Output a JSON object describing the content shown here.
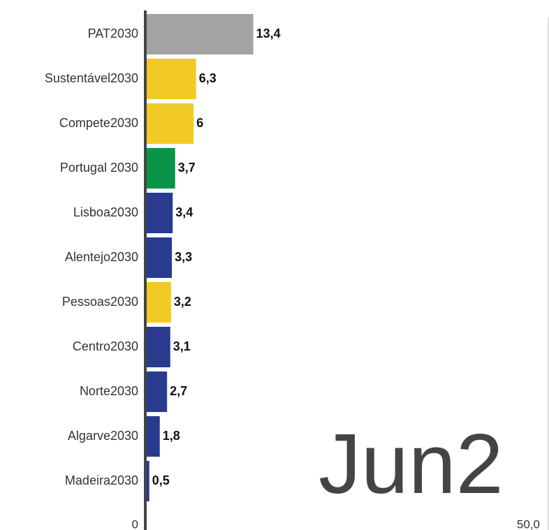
{
  "chart_data": {
    "type": "bar",
    "orientation": "horizontal",
    "categories": [
      "PAT2030",
      "Sustentável2030",
      "Compete2030",
      "Portugal 2030",
      "Lisboa2030",
      "Alentejo2030",
      "Pessoas2030",
      "Centro2030",
      "Norte2030",
      "Algarve2030",
      "Madeira2030"
    ],
    "values": [
      13.4,
      6.3,
      6,
      3.7,
      3.4,
      3.3,
      3.2,
      3.1,
      2.7,
      1.8,
      0.5
    ],
    "value_labels": [
      "13,4",
      "6,3",
      "6",
      "3,7",
      "3,4",
      "3,3",
      "3,2",
      "3,1",
      "2,7",
      "1,8",
      "0,5"
    ],
    "colors": [
      "#a3a3a3",
      "#f2ca26",
      "#f2ca26",
      "#0a9447",
      "#283b8f",
      "#283b8f",
      "#f2ca26",
      "#283b8f",
      "#283b8f",
      "#283b8f",
      "#283b8f"
    ],
    "xlim": [
      0,
      50
    ],
    "xticks": [
      0,
      {
        "value": 50,
        "label": "50,0"
      }
    ],
    "annotation": "Jun2"
  }
}
